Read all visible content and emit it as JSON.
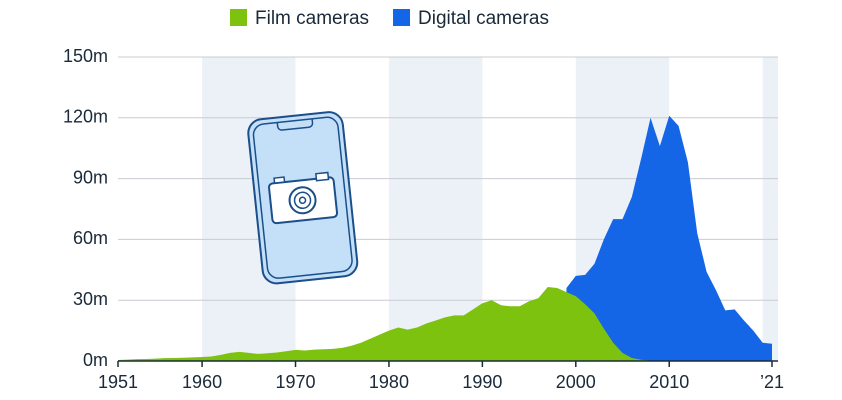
{
  "chart_data": {
    "type": "area",
    "x": [
      1951,
      1952,
      1953,
      1954,
      1955,
      1956,
      1957,
      1958,
      1959,
      1960,
      1961,
      1962,
      1963,
      1964,
      1965,
      1966,
      1967,
      1968,
      1969,
      1970,
      1971,
      1972,
      1973,
      1974,
      1975,
      1976,
      1977,
      1978,
      1979,
      1980,
      1981,
      1982,
      1983,
      1984,
      1985,
      1986,
      1987,
      1988,
      1989,
      1990,
      1991,
      1992,
      1993,
      1994,
      1995,
      1996,
      1997,
      1998,
      1999,
      2000,
      2001,
      2002,
      2003,
      2004,
      2005,
      2006,
      2007,
      2008,
      2009,
      2010,
      2011,
      2012,
      2013,
      2014,
      2015,
      2016,
      2017,
      2018,
      2019,
      2020,
      2021
    ],
    "series": [
      {
        "name": "Film cameras",
        "color": "#7cc20e",
        "values": [
          0.5,
          0.7,
          0.9,
          1,
          1.2,
          1.4,
          1.5,
          1.6,
          1.8,
          2,
          2.2,
          3,
          4,
          4.5,
          4,
          3.5,
          3.8,
          4.2,
          4.8,
          5.5,
          5.2,
          5.6,
          5.8,
          6,
          6.5,
          7.5,
          9,
          11,
          13,
          15,
          16.5,
          15.5,
          16.5,
          18.5,
          20,
          21.5,
          22.5,
          22.5,
          25.5,
          28.5,
          30,
          27.5,
          27,
          27,
          29.5,
          31,
          36.5,
          36,
          34,
          32,
          28,
          23.5,
          16,
          9,
          4,
          1.5,
          0.6,
          0.2,
          null,
          null,
          null,
          null,
          null,
          null,
          null,
          null,
          null,
          null,
          null,
          null,
          null
        ]
      },
      {
        "name": "Digital cameras",
        "color": "#1466e6",
        "values": [
          null,
          null,
          null,
          null,
          null,
          null,
          null,
          null,
          null,
          null,
          null,
          null,
          null,
          null,
          null,
          null,
          null,
          null,
          null,
          null,
          null,
          null,
          null,
          null,
          null,
          null,
          null,
          null,
          null,
          null,
          null,
          null,
          null,
          null,
          null,
          null,
          null,
          null,
          null,
          null,
          null,
          null,
          null,
          null,
          null,
          null,
          null,
          null,
          36,
          42,
          42.5,
          48,
          60,
          70,
          70,
          81,
          100,
          120,
          106,
          121,
          116,
          98,
          63,
          44,
          35,
          25,
          25.5,
          20,
          15,
          9,
          8.5
        ]
      }
    ],
    "xlim": [
      1951,
      2021
    ],
    "xticks": [
      1951,
      1960,
      1970,
      1980,
      1990,
      2000,
      2010,
      {
        "value": 2021,
        "label": "’21"
      }
    ],
    "ylim": [
      0,
      150
    ],
    "yticks": [
      {
        "value": 0,
        "label": "0m"
      },
      {
        "value": 30,
        "label": "30m"
      },
      {
        "value": 60,
        "label": "60m"
      },
      {
        "value": 90,
        "label": "90m"
      },
      {
        "value": 120,
        "label": "120m"
      },
      {
        "value": 150,
        "label": "150m"
      }
    ],
    "grid": true
  }
}
